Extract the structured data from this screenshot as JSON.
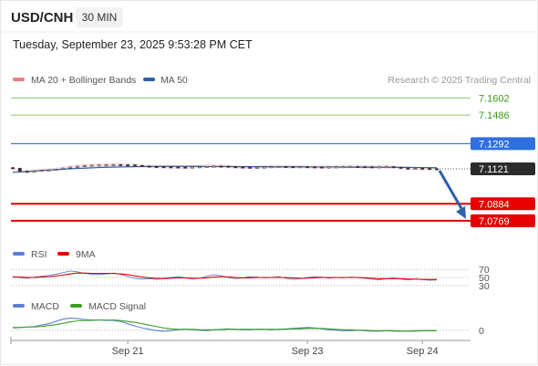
{
  "header": {
    "symbol": "USD/CNH",
    "interval": "30 MIN",
    "timestamp": "Tuesday, September 23, 2025 9:53:28 PM CET"
  },
  "legends": {
    "price": [
      {
        "label": "MA 20 + Bollinger Bands",
        "color": "#f08080"
      },
      {
        "label": "MA 50",
        "color": "#2f5fa7"
      }
    ],
    "credit": "Research © 2025 Trading Central",
    "rsi": [
      {
        "label": "RSI",
        "color": "#5b7fd6"
      },
      {
        "label": "9MA",
        "color": "#e00000"
      }
    ],
    "macd": [
      {
        "label": "MACD",
        "color": "#5b7fd6"
      },
      {
        "label": "MACD Signal",
        "color": "#3aa020"
      }
    ]
  },
  "chart_data": [
    {
      "type": "line",
      "panel": "price",
      "ylim": [
        7.07,
        7.166
      ],
      "levels": [
        {
          "label": "7.1602",
          "value": 7.1602,
          "color": "#8ac96a",
          "style": "resistance"
        },
        {
          "label": "7.1486",
          "value": 7.1486,
          "color": "#8ac96a",
          "style": "resistance"
        },
        {
          "label": "7.1292",
          "value": 7.1292,
          "color": "#2f6fe0",
          "style": "pivot"
        },
        {
          "label": "7.1121",
          "value": 7.1121,
          "color": "#2b2b2b",
          "style": "last"
        },
        {
          "label": "7.0884",
          "value": 7.0884,
          "color": "#e60000",
          "style": "support"
        },
        {
          "label": "7.0769",
          "value": 7.0769,
          "color": "#e60000",
          "style": "support"
        }
      ],
      "series": [
        {
          "name": "Price",
          "values": [
            7.1125,
            7.1105,
            7.1102,
            7.1108,
            7.1112,
            7.1114,
            7.1118,
            7.1126,
            7.1133,
            7.1139,
            7.1143,
            7.1146,
            7.1147,
            7.1148,
            7.115,
            7.1149,
            7.1148,
            7.1144,
            7.114,
            7.1137,
            7.1136,
            7.1135,
            7.1134,
            7.1133,
            7.1132,
            7.1134,
            7.1136,
            7.1138,
            7.114,
            7.1139,
            7.1136,
            7.1134,
            7.1132,
            7.1131,
            7.1132,
            7.1134,
            7.1136,
            7.1137,
            7.1136,
            7.1135,
            7.1136,
            7.1135,
            7.1134,
            7.1133,
            7.1134,
            7.1135,
            7.1136,
            7.1137,
            7.1136,
            7.1135,
            7.1134,
            7.1135,
            7.1136,
            7.1132,
            7.1126,
            7.1124,
            7.1125,
            7.1124,
            7.1122,
            7.1121
          ]
        },
        {
          "name": "MA 50",
          "values": [
            7.1098,
            7.11,
            7.1103,
            7.1106,
            7.111,
            7.1113,
            7.1116,
            7.1119,
            7.1122,
            7.1124,
            7.1126,
            7.1128,
            7.113,
            7.1132,
            7.1133,
            7.1134,
            7.1135,
            7.1136,
            7.1137,
            7.1137,
            7.1138,
            7.1138,
            7.1138,
            7.1138,
            7.1138,
            7.1138,
            7.1138,
            7.1137,
            7.1137,
            7.1137,
            7.1137,
            7.1136,
            7.1136,
            7.1136,
            7.1136,
            7.1136,
            7.1135,
            7.1135,
            7.1135,
            7.1135,
            7.1135,
            7.1134,
            7.1134,
            7.1134,
            7.1134,
            7.1134,
            7.1133,
            7.1133,
            7.1133,
            7.1133,
            7.1133,
            7.1132,
            7.1132,
            7.1132,
            7.1131,
            7.1131,
            7.113,
            7.113,
            7.1129,
            7.1129
          ]
        }
      ],
      "forecast": {
        "from": 7.1121,
        "to": 7.0769
      }
    },
    {
      "type": "line",
      "panel": "rsi",
      "ylim": [
        25,
        75
      ],
      "ticks": [
        "70",
        "50",
        "30"
      ],
      "tick_values": [
        70,
        50,
        30
      ],
      "series": [
        {
          "name": "RSI",
          "values": [
            52,
            50,
            48,
            51,
            53,
            55,
            58,
            62,
            66,
            64,
            60,
            58,
            57,
            59,
            61,
            58,
            52,
            48,
            46,
            47,
            45,
            48,
            50,
            52,
            49,
            46,
            48,
            53,
            57,
            54,
            50,
            47,
            49,
            52,
            51,
            49,
            50,
            52,
            48,
            45,
            47,
            50,
            52,
            51,
            48,
            50,
            49,
            51,
            50,
            48,
            46,
            44,
            47,
            49,
            46,
            44,
            46,
            45,
            43,
            44
          ]
        },
        {
          "name": "9MA",
          "values": [
            51,
            51,
            50,
            50,
            51,
            52,
            54,
            56,
            59,
            61,
            61,
            60,
            60,
            60,
            60,
            59,
            57,
            54,
            51,
            49,
            48,
            47,
            48,
            49,
            49,
            48,
            48,
            49,
            51,
            52,
            51,
            50,
            49,
            49,
            50,
            50,
            50,
            50,
            50,
            49,
            48,
            48,
            49,
            50,
            50,
            50,
            50,
            50,
            50,
            49,
            48,
            47,
            47,
            47,
            47,
            46,
            46,
            45,
            45,
            45
          ]
        }
      ]
    },
    {
      "type": "line",
      "panel": "macd",
      "ylim": [
        -0.002,
        0.0035
      ],
      "ticks": [
        "0"
      ],
      "tick_values": [
        0
      ],
      "series": [
        {
          "name": "MACD",
          "values": [
            0.0005,
            0.0006,
            0.0007,
            0.0008,
            0.0011,
            0.0014,
            0.0019,
            0.0024,
            0.0026,
            0.0025,
            0.0023,
            0.0022,
            0.0022,
            0.0021,
            0.0021,
            0.0019,
            0.0014,
            0.0009,
            0.0005,
            0.0002,
            -0.0001,
            -0.0002,
            -0.0001,
            0.0001,
            0.0002,
            0.0001,
            0.0,
            -0.0001,
            0.0001,
            0.0002,
            0.0003,
            0.0002,
            0.0001,
            0.0001,
            0.0002,
            0.0002,
            0.0001,
            0.0002,
            0.0003,
            0.0004,
            0.0005,
            0.0006,
            0.0005,
            0.0003,
            0.0001,
            0.0,
            -0.0001,
            -0.0001,
            0.0,
            -0.0001,
            -0.0002,
            -0.0002,
            -0.0001,
            -0.0002,
            -0.0002,
            -0.0002,
            -0.0001,
            -0.0001,
            -0.0001,
            -0.0001
          ]
        },
        {
          "name": "MACD Signal",
          "values": [
            0.0006,
            0.0006,
            0.0007,
            0.0007,
            0.0008,
            0.001,
            0.0012,
            0.0015,
            0.0018,
            0.002,
            0.0021,
            0.0021,
            0.0022,
            0.0022,
            0.0022,
            0.0021,
            0.0019,
            0.0017,
            0.0014,
            0.0011,
            0.0008,
            0.0005,
            0.0003,
            0.0002,
            0.0002,
            0.0002,
            0.0001,
            0.0001,
            0.0001,
            0.0001,
            0.0002,
            0.0002,
            0.0002,
            0.0002,
            0.0002,
            0.0002,
            0.0002,
            0.0002,
            0.0002,
            0.0003,
            0.0003,
            0.0004,
            0.0004,
            0.0004,
            0.0003,
            0.0002,
            0.0001,
            0.0001,
            0.0,
            0.0,
            -0.0001,
            -0.0001,
            -0.0001,
            -0.0001,
            -0.0002,
            -0.0002,
            -0.0002,
            -0.0001,
            -0.0001,
            -0.0001
          ]
        }
      ]
    }
  ],
  "x_axis": {
    "ticks": [
      {
        "label": "Sep 21",
        "index": 16
      },
      {
        "label": "Sep 23",
        "index": 41
      },
      {
        "label": "Sep 24",
        "index": 57
      }
    ]
  }
}
